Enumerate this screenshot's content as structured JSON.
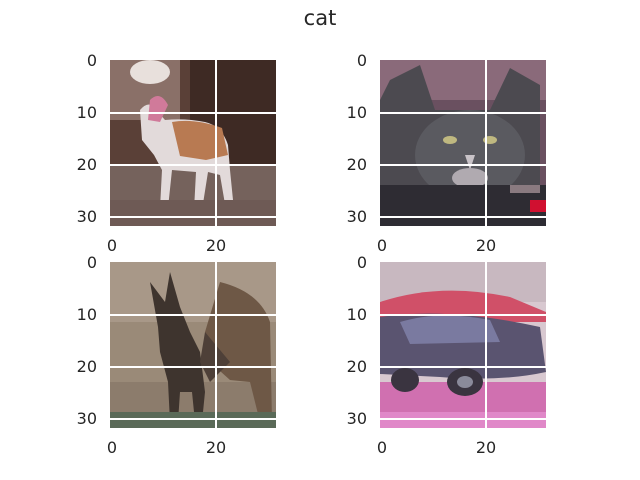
{
  "figure": {
    "title": "cat"
  },
  "panels": [
    {
      "subject": "dog-photo"
    },
    {
      "subject": "cat-photo"
    },
    {
      "subject": "deer-photo"
    },
    {
      "subject": "car-photo"
    }
  ],
  "axes": {
    "yticks": [
      "0",
      "10",
      "20",
      "30"
    ],
    "xticks": [
      "0",
      "20"
    ]
  }
}
